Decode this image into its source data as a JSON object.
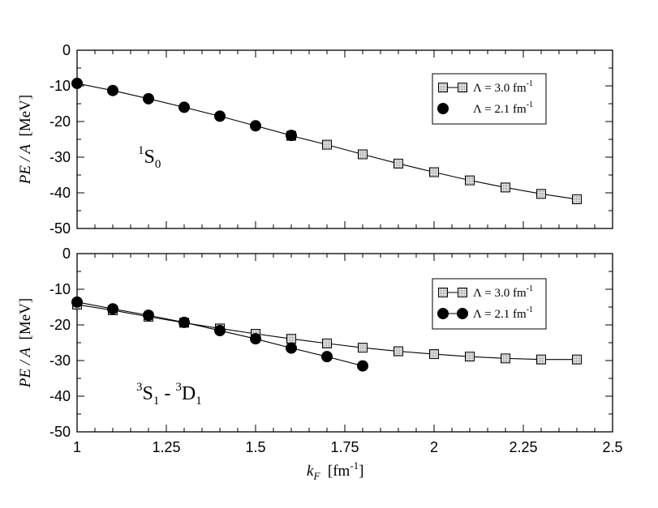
{
  "chart_data": [
    {
      "type": "line",
      "channel_label": {
        "pre": "1",
        "main": "S",
        "sub": "0"
      },
      "ylabel": {
        "main": "PE / A",
        "unit": "[MeV]"
      },
      "ylim": [
        -50,
        0
      ],
      "yticks": [
        0,
        -10,
        -20,
        -30,
        -40,
        -50
      ],
      "xlim": [
        1,
        2.5
      ],
      "legend": {
        "position": "top-right",
        "entries": [
          "Λ = 3.0 fm",
          "Λ = 2.1 fm"
        ],
        "superscript": "-1"
      },
      "series": [
        {
          "name": "Λ = 3.0 fm⁻¹",
          "marker": "square",
          "x": [
            1.6,
            1.7,
            1.8,
            1.9,
            2.0,
            2.1,
            2.2,
            2.3,
            2.4
          ],
          "y": [
            -24.0,
            -26.5,
            -29.2,
            -31.8,
            -34.2,
            -36.5,
            -38.5,
            -40.3,
            -41.8
          ]
        },
        {
          "name": "Λ = 2.1 fm⁻¹",
          "marker": "circle",
          "x": [
            1.0,
            1.1,
            1.2,
            1.3,
            1.4,
            1.5,
            1.6
          ],
          "y": [
            -9.3,
            -11.3,
            -13.6,
            -16.0,
            -18.5,
            -21.2,
            -23.9
          ]
        }
      ]
    },
    {
      "type": "line",
      "channel_label": {
        "pre1": "3",
        "main1": "S",
        "sub1": "1",
        "dash": " - ",
        "pre2": "3",
        "main2": "D",
        "sub2": "1"
      },
      "ylabel": {
        "main": "PE / A",
        "unit": "[MeV]"
      },
      "ylim": [
        -50,
        0
      ],
      "yticks": [
        0,
        -10,
        -20,
        -30,
        -40,
        -50
      ],
      "xlim": [
        1,
        2.5
      ],
      "xticks": [
        1,
        1.25,
        1.5,
        1.75,
        2,
        2.25,
        2.5
      ],
      "xticklabels": [
        "1",
        "1.25",
        "1.5",
        "1.75",
        "2",
        "2.25",
        "2.5"
      ],
      "xlabel": {
        "main": "k",
        "sub": "F",
        "unit": "[fm",
        "unit_sup": "-1",
        "unit_close": "]"
      },
      "legend": {
        "position": "top-right",
        "entries": [
          "Λ = 3.0 fm",
          "Λ = 2.1 fm"
        ],
        "superscript": "-1"
      },
      "series": [
        {
          "name": "Λ = 3.0 fm⁻¹",
          "marker": "square",
          "x": [
            1.0,
            1.1,
            1.2,
            1.3,
            1.4,
            1.5,
            1.6,
            1.7,
            1.8,
            1.9,
            2.0,
            2.1,
            2.2,
            2.3,
            2.4
          ],
          "y": [
            -14.3,
            -15.9,
            -17.7,
            -19.4,
            -21.0,
            -22.5,
            -23.9,
            -25.2,
            -26.4,
            -27.4,
            -28.2,
            -28.9,
            -29.4,
            -29.7,
            -29.7
          ]
        },
        {
          "name": "Λ = 2.1 fm⁻¹",
          "marker": "circle",
          "x": [
            1.0,
            1.1,
            1.2,
            1.3,
            1.4,
            1.5,
            1.6,
            1.7,
            1.8
          ],
          "y": [
            -13.6,
            -15.5,
            -17.3,
            -19.3,
            -21.6,
            -23.9,
            -26.5,
            -28.9,
            -31.5
          ]
        }
      ]
    }
  ]
}
